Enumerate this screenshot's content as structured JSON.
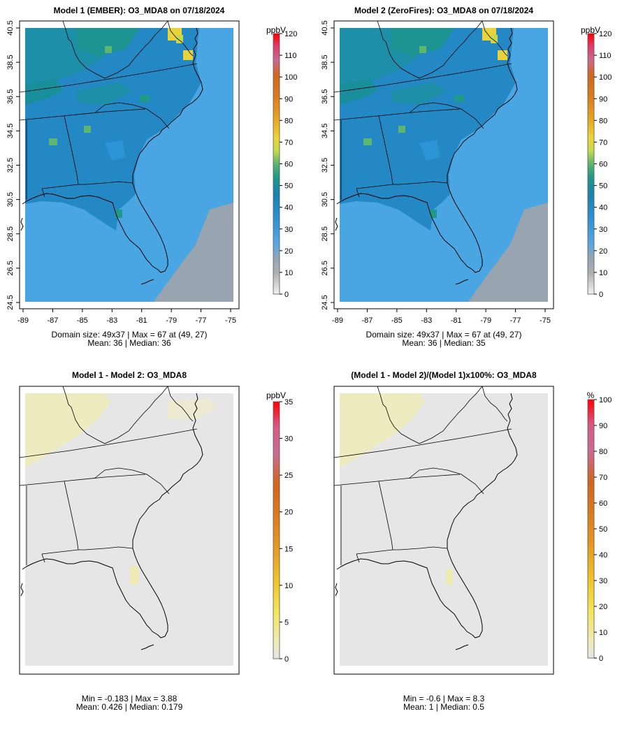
{
  "chart_data": [
    {
      "type": "heatmap",
      "title": "Model 1 (EMBER): O3_MDA8 on 07/18/2024",
      "x_ticks": [
        "-89",
        "-87",
        "-85",
        "-83",
        "-81",
        "-79",
        "-77",
        "-75"
      ],
      "y_ticks": [
        "24.5",
        "26.5",
        "28.5",
        "30.5",
        "32.5",
        "34.5",
        "36.5",
        "38.5",
        "40.5"
      ],
      "xlim": [
        -89,
        -75
      ],
      "ylim": [
        24.5,
        40.5
      ],
      "domain_size": "49x37",
      "max_text": "67 at (49, 27)",
      "stats_line1": "Domain size: 49x37 | Max = 67 at (49, 27)",
      "stats_line2": "Mean: 36 |  Median: 36",
      "mean": 36,
      "median": 36,
      "max": 67,
      "colorbar": {
        "unit": "ppbV",
        "min": 0,
        "max": 120,
        "ticks": [
          "0",
          "10",
          "20",
          "30",
          "40",
          "50",
          "60",
          "70",
          "80",
          "90",
          "100",
          "110",
          "120"
        ]
      }
    },
    {
      "type": "heatmap",
      "title": "Model 2 (ZeroFires): O3_MDA8 on 07/18/2024",
      "x_ticks": [
        "-89",
        "-87",
        "-85",
        "-83",
        "-81",
        "-79",
        "-77",
        "-75"
      ],
      "y_ticks": [
        "24.5",
        "26.5",
        "28.5",
        "30.5",
        "32.5",
        "34.5",
        "36.5",
        "38.5",
        "40.5"
      ],
      "xlim": [
        -89,
        -75
      ],
      "ylim": [
        24.5,
        40.5
      ],
      "domain_size": "49x37",
      "max_text": "67 at (49, 27)",
      "stats_line1": "Domain size: 49x37 | Max = 67 at (49, 27)",
      "stats_line2": "Mean: 36 |  Median: 35",
      "mean": 36,
      "median": 35,
      "max": 67,
      "colorbar": {
        "unit": "ppbV",
        "min": 0,
        "max": 120,
        "ticks": [
          "0",
          "10",
          "20",
          "30",
          "40",
          "50",
          "60",
          "70",
          "80",
          "90",
          "100",
          "110",
          "120"
        ]
      }
    },
    {
      "type": "heatmap",
      "title": "Model 1 - Model 2: O3_MDA8",
      "stats_line1": "Min = -0.183 | Max = 3.88",
      "stats_line2": "Mean: 0.426 |  Median: 0.179",
      "min": -0.183,
      "max": 3.88,
      "mean": 0.426,
      "median": 0.179,
      "colorbar": {
        "unit": "ppbV",
        "min": 0,
        "max": 35,
        "ticks": [
          "0",
          "5",
          "10",
          "15",
          "20",
          "25",
          "30",
          "35"
        ]
      }
    },
    {
      "type": "heatmap",
      "title": "(Model 1 - Model 2)/(Model 1)x100%: O3_MDA8",
      "stats_line1": "Min = -0.6 | Max = 8.3",
      "stats_line2": "Mean: 1 |  Median: 0.5",
      "min": -0.6,
      "max": 8.3,
      "mean": 1,
      "median": 0.5,
      "colorbar": {
        "unit": "%",
        "min": 0,
        "max": 100,
        "ticks": [
          "0",
          "10",
          "20",
          "30",
          "40",
          "50",
          "60",
          "70",
          "80",
          "90",
          "100"
        ]
      }
    }
  ],
  "colors": {
    "ozone_scale": [
      "#d9d9d9",
      "#b3b3b3",
      "#8c9aa8",
      "#53a6e3",
      "#2a93d8",
      "#1783b8",
      "#1e9a8c",
      "#5cb570",
      "#c9d64a",
      "#ead33c",
      "#e8a21c",
      "#e07a1e",
      "#d65a1a",
      "#c9478c",
      "#d24a8a",
      "#e8203a",
      "#ff0000"
    ],
    "diff_scale": [
      "#e6e6e6",
      "#f0ebb0",
      "#f5e86a",
      "#f2cf2a",
      "#e8a21c",
      "#e07a1e",
      "#d65a1a",
      "#c9478c",
      "#d8507a",
      "#ff0000"
    ],
    "ocean_low": "#9aa3ad",
    "diff_background": "#e6e6e6",
    "diff_positive": "#efeab3"
  }
}
